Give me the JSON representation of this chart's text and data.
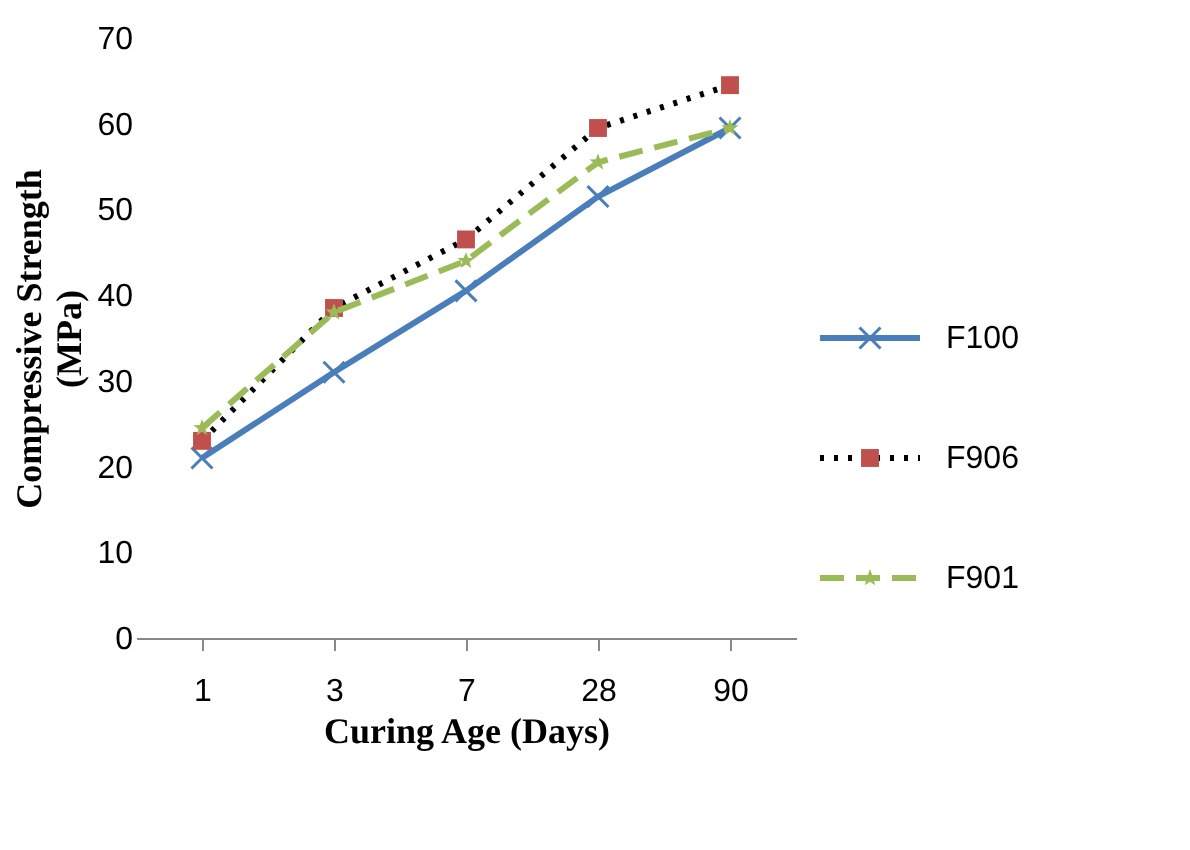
{
  "chart_data": {
    "type": "line",
    "xlabel": "Curing Age (Days)",
    "ylabel": "Compressive Strength\n(MPa)",
    "categories": [
      "1",
      "3",
      "7",
      "28",
      "90"
    ],
    "ylim": [
      0,
      70
    ],
    "yticks": [
      0,
      10,
      20,
      30,
      40,
      50,
      60,
      70
    ],
    "legend": "right",
    "series": [
      {
        "name": "F100",
        "color": "#4a7ebb",
        "marker": "cross",
        "line_style": "solid",
        "values": [
          21,
          31,
          40.5,
          51.5,
          59.5
        ]
      },
      {
        "name": "F906",
        "color": "#c0504d",
        "marker": "square",
        "line_style": "dotted",
        "values": [
          23,
          38.5,
          46.5,
          59.5,
          64.5
        ]
      },
      {
        "name": "F901",
        "color": "#9bbb59",
        "marker": "star",
        "line_style": "dashed",
        "values": [
          24.5,
          38,
          44,
          55.5,
          59.5
        ]
      }
    ]
  }
}
